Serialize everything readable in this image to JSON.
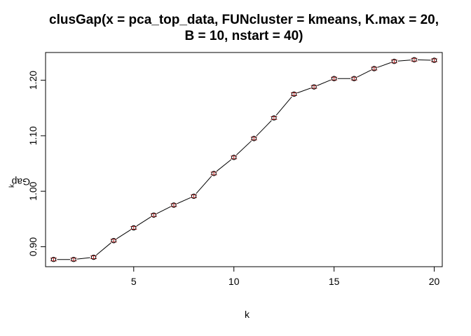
{
  "chart_data": {
    "type": "line",
    "title": "clusGap(x = pca_top_data, FUNcluster = kmeans, K.max = 20,",
    "title_line2": "B = 10, nstart = 40)",
    "xlabel": "k",
    "ylabel": "Gap",
    "ylabel_sub": "k",
    "x": [
      1,
      2,
      3,
      4,
      5,
      6,
      7,
      8,
      9,
      10,
      11,
      12,
      13,
      14,
      15,
      16,
      17,
      18,
      19,
      20
    ],
    "series": [
      {
        "values": [
          0.877,
          0.877,
          0.881,
          0.911,
          0.934,
          0.957,
          0.975,
          0.991,
          1.032,
          1.061,
          1.095,
          1.132,
          1.175,
          1.188,
          1.203,
          1.203,
          1.221,
          1.234,
          1.237,
          1.236
        ],
        "se": [
          0.0025,
          0.0025,
          0.0025,
          0.0025,
          0.0025,
          0.0025,
          0.0025,
          0.0025,
          0.0025,
          0.0025,
          0.0025,
          0.0025,
          0.0025,
          0.0025,
          0.0025,
          0.0025,
          0.0025,
          0.0025,
          0.0025,
          0.0025
        ]
      }
    ],
    "xlim": [
      0.6,
      20.4
    ],
    "ylim": [
      0.864,
      1.25
    ],
    "xticks": [
      5,
      10,
      15,
      20
    ],
    "xtick_labels": [
      "5",
      "10",
      "15",
      "20"
    ],
    "yticks": [
      0.9,
      1.0,
      1.1,
      1.2
    ],
    "ytick_labels": [
      "0.90",
      "1.00",
      "1.10",
      "1.20"
    ],
    "grid": false,
    "colors": {
      "line": "#000000",
      "points": "#000000",
      "error_bars": "#b22222"
    }
  }
}
